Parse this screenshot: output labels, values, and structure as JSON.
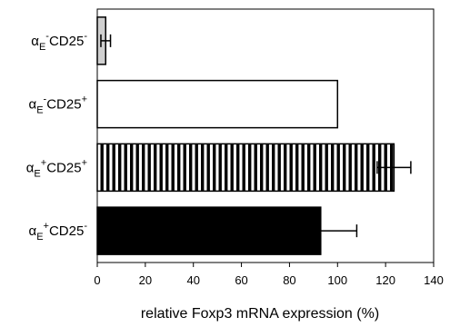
{
  "chart_data": {
    "type": "bar",
    "orientation": "horizontal",
    "categories": [
      {
        "greek": "α",
        "sub": "E",
        "sup1": "-",
        "mid": "CD25",
        "sup2": "-"
      },
      {
        "greek": "α",
        "sub": "E",
        "sup1": "-",
        "mid": "CD25",
        "sup2": "+"
      },
      {
        "greek": "α",
        "sub": "E",
        "sup1": "+",
        "mid": "CD25",
        "sup2": "+"
      },
      {
        "greek": "α",
        "sub": "E",
        "sup1": "+",
        "mid": "CD25",
        "sup2": "-"
      }
    ],
    "values": [
      3.5,
      100,
      123.5,
      93
    ],
    "errors": [
      2,
      0,
      7,
      15
    ],
    "fills": [
      "light-gray",
      "white",
      "vertical-stripes",
      "black"
    ],
    "xlabel": "relative Foxp3 mRNA expression (%)",
    "xlim": [
      0,
      140
    ],
    "xticks": [
      0,
      20,
      40,
      60,
      80,
      100,
      120,
      140
    ],
    "grid": false,
    "legend": "none",
    "colors": {
      "light-gray": "#cfcfcf",
      "white": "#ffffff",
      "black": "#000000",
      "stroke": "#000000"
    }
  }
}
